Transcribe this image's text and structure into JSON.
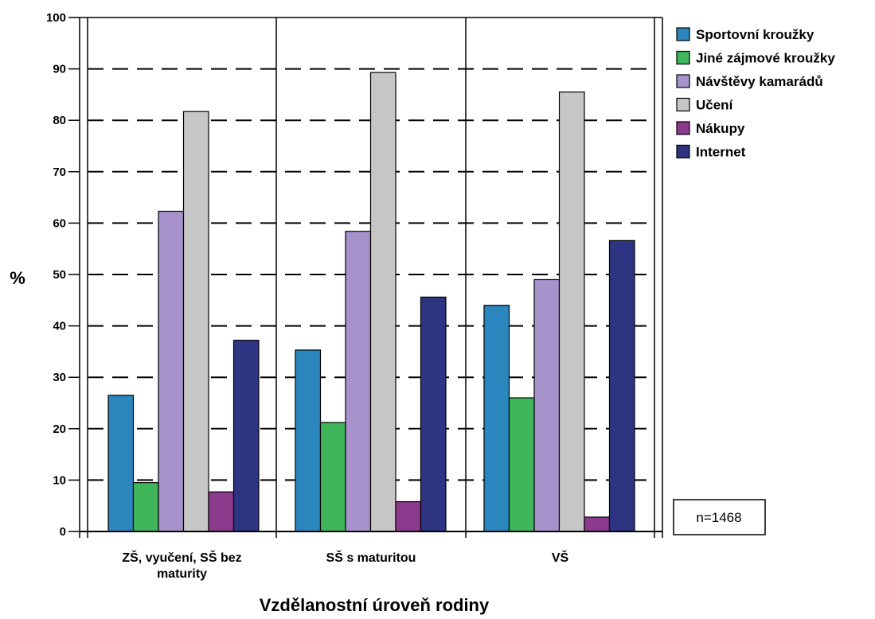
{
  "chart_data": {
    "type": "bar",
    "title": "",
    "ylabel": "%",
    "xlabel": "Vzdělanostní úroveň rodiny",
    "ylim": [
      0,
      100
    ],
    "yticks": [
      "0",
      "10",
      "20",
      "30",
      "40",
      "50",
      "60",
      "70",
      "80",
      "90",
      "100"
    ],
    "grid": "dashed horizontal",
    "legend_position": "right",
    "categories": [
      [
        "ZŠ, vyučení, SŠ bez",
        "maturity"
      ],
      [
        "SŠ s maturitou"
      ],
      [
        "VŠ"
      ]
    ],
    "series": [
      {
        "name": "Sportovní kroužky",
        "color": "#2b86bd",
        "values": [
          26.5,
          35.3,
          44.0
        ]
      },
      {
        "name": "Jiné zájmové kroužky",
        "color": "#3fb659",
        "values": [
          9.5,
          21.2,
          26.0
        ]
      },
      {
        "name": "Návštěvy kamarádů",
        "color": "#a792cb",
        "values": [
          62.3,
          58.4,
          49.0
        ]
      },
      {
        "name": "Učení",
        "color": "#c6c6c6",
        "values": [
          81.7,
          89.3,
          85.5
        ]
      },
      {
        "name": "Nákupy",
        "color": "#8b3a8e",
        "values": [
          7.7,
          5.8,
          2.8
        ]
      },
      {
        "name": "Internet",
        "color": "#2d3582",
        "values": [
          37.2,
          45.6,
          56.6
        ]
      }
    ],
    "note": "n=1468"
  }
}
